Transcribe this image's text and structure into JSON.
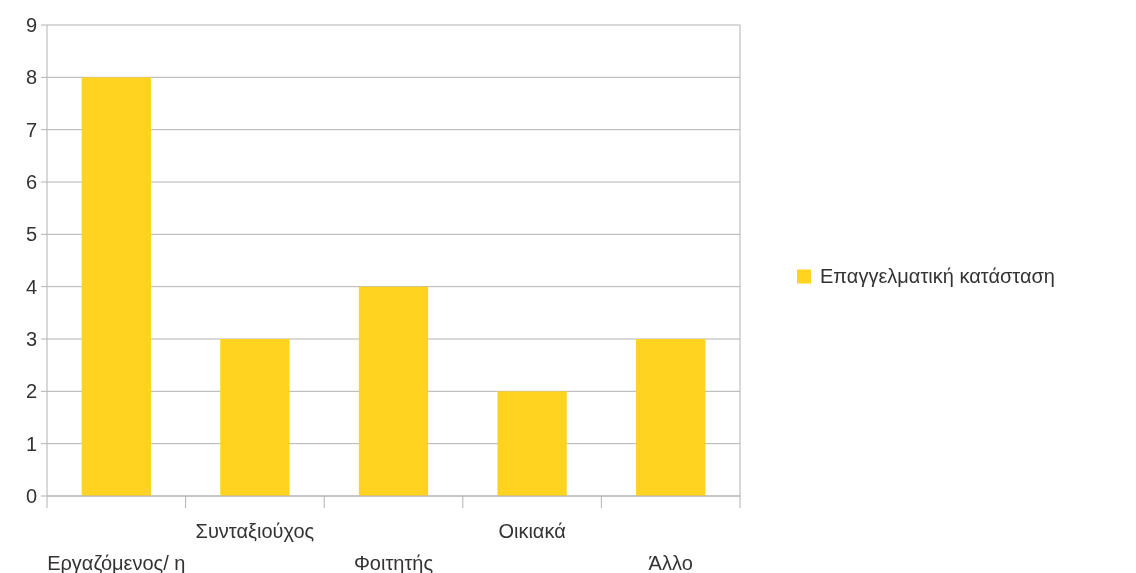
{
  "chart_data": {
    "type": "bar",
    "categories": [
      "Εργαζόμενος/ η",
      "Συνταξιούχος",
      "Φοιτητής",
      "Οικιακά",
      "Άλλο"
    ],
    "series": [
      {
        "name": "Επαγγελματική κατάσταση",
        "color": "#ffd320",
        "values": [
          8,
          3,
          4,
          2,
          3
        ]
      }
    ],
    "ylim": [
      0,
      9
    ],
    "yticks": [
      0,
      1,
      2,
      3,
      4,
      5,
      6,
      7,
      8,
      9
    ],
    "grid": "y",
    "legend": "right"
  }
}
